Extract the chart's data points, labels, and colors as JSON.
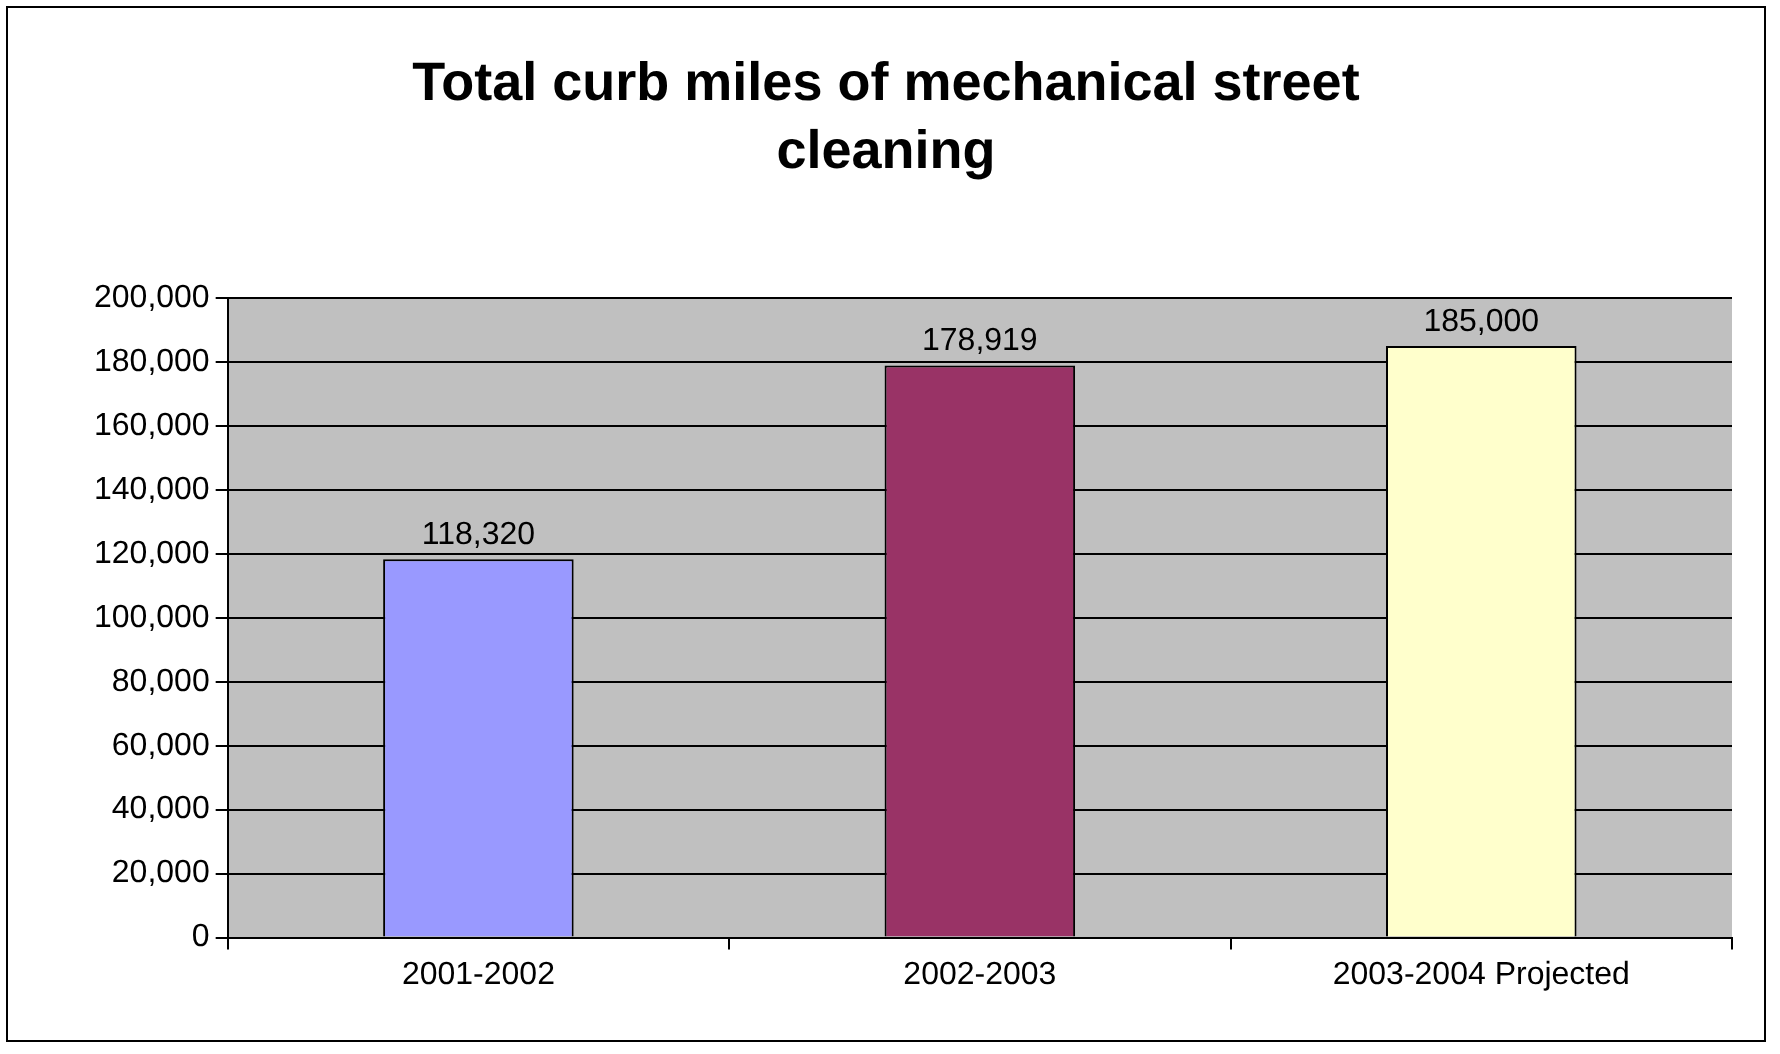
{
  "chart_data": {
    "type": "bar",
    "title": "Total curb miles of mechanical street cleaning",
    "categories": [
      "2001-2002",
      "2002-2003",
      "2003-2004 Projected"
    ],
    "values": [
      118320,
      178919,
      185000
    ],
    "value_labels": [
      "118,320",
      "178,919",
      "185,000"
    ],
    "colors": [
      "#9999ff",
      "#993366",
      "#ffffcc"
    ],
    "ylim": [
      0,
      200000
    ],
    "yticks": [
      {
        "value": 0,
        "label": "0"
      },
      {
        "value": 20000,
        "label": "20,000"
      },
      {
        "value": 40000,
        "label": "40,000"
      },
      {
        "value": 60000,
        "label": "60,000"
      },
      {
        "value": 80000,
        "label": "80,000"
      },
      {
        "value": 100000,
        "label": "100,000"
      },
      {
        "value": 120000,
        "label": "120,000"
      },
      {
        "value": 140000,
        "label": "140,000"
      },
      {
        "value": 160000,
        "label": "160,000"
      },
      {
        "value": 180000,
        "label": "180,000"
      },
      {
        "value": 200000,
        "label": "200,000"
      }
    ],
    "grid": "y"
  }
}
